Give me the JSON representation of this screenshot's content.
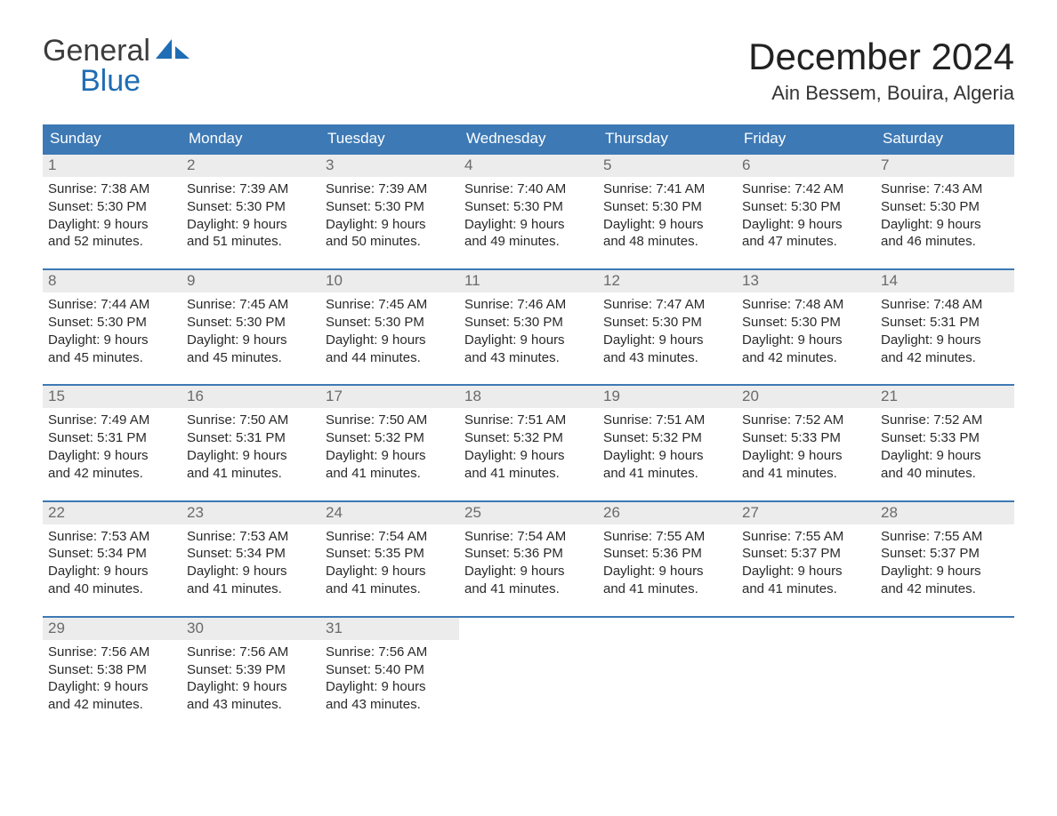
{
  "logo": {
    "word1": "General",
    "word2": "Blue",
    "sail_color": "#1f6db4",
    "text_color": "#3c3c3c"
  },
  "header": {
    "month": "December 2024",
    "location": "Ain Bessem, Bouira, Algeria"
  },
  "colors": {
    "header_bg": "#3d79b5",
    "header_text": "#ffffff",
    "week_border": "#3d79b5",
    "daynum_bg": "#ececec",
    "daynum_text": "#6a6a6a",
    "body_text": "#2a2a2a",
    "page_bg": "#ffffff"
  },
  "weekdays": [
    "Sunday",
    "Monday",
    "Tuesday",
    "Wednesday",
    "Thursday",
    "Friday",
    "Saturday"
  ],
  "days": [
    {
      "n": "1",
      "sr": "7:38 AM",
      "ss": "5:30 PM",
      "dl1": "Daylight: 9 hours",
      "dl2": "and 52 minutes."
    },
    {
      "n": "2",
      "sr": "7:39 AM",
      "ss": "5:30 PM",
      "dl1": "Daylight: 9 hours",
      "dl2": "and 51 minutes."
    },
    {
      "n": "3",
      "sr": "7:39 AM",
      "ss": "5:30 PM",
      "dl1": "Daylight: 9 hours",
      "dl2": "and 50 minutes."
    },
    {
      "n": "4",
      "sr": "7:40 AM",
      "ss": "5:30 PM",
      "dl1": "Daylight: 9 hours",
      "dl2": "and 49 minutes."
    },
    {
      "n": "5",
      "sr": "7:41 AM",
      "ss": "5:30 PM",
      "dl1": "Daylight: 9 hours",
      "dl2": "and 48 minutes."
    },
    {
      "n": "6",
      "sr": "7:42 AM",
      "ss": "5:30 PM",
      "dl1": "Daylight: 9 hours",
      "dl2": "and 47 minutes."
    },
    {
      "n": "7",
      "sr": "7:43 AM",
      "ss": "5:30 PM",
      "dl1": "Daylight: 9 hours",
      "dl2": "and 46 minutes."
    },
    {
      "n": "8",
      "sr": "7:44 AM",
      "ss": "5:30 PM",
      "dl1": "Daylight: 9 hours",
      "dl2": "and 45 minutes."
    },
    {
      "n": "9",
      "sr": "7:45 AM",
      "ss": "5:30 PM",
      "dl1": "Daylight: 9 hours",
      "dl2": "and 45 minutes."
    },
    {
      "n": "10",
      "sr": "7:45 AM",
      "ss": "5:30 PM",
      "dl1": "Daylight: 9 hours",
      "dl2": "and 44 minutes."
    },
    {
      "n": "11",
      "sr": "7:46 AM",
      "ss": "5:30 PM",
      "dl1": "Daylight: 9 hours",
      "dl2": "and 43 minutes."
    },
    {
      "n": "12",
      "sr": "7:47 AM",
      "ss": "5:30 PM",
      "dl1": "Daylight: 9 hours",
      "dl2": "and 43 minutes."
    },
    {
      "n": "13",
      "sr": "7:48 AM",
      "ss": "5:30 PM",
      "dl1": "Daylight: 9 hours",
      "dl2": "and 42 minutes."
    },
    {
      "n": "14",
      "sr": "7:48 AM",
      "ss": "5:31 PM",
      "dl1": "Daylight: 9 hours",
      "dl2": "and 42 minutes."
    },
    {
      "n": "15",
      "sr": "7:49 AM",
      "ss": "5:31 PM",
      "dl1": "Daylight: 9 hours",
      "dl2": "and 42 minutes."
    },
    {
      "n": "16",
      "sr": "7:50 AM",
      "ss": "5:31 PM",
      "dl1": "Daylight: 9 hours",
      "dl2": "and 41 minutes."
    },
    {
      "n": "17",
      "sr": "7:50 AM",
      "ss": "5:32 PM",
      "dl1": "Daylight: 9 hours",
      "dl2": "and 41 minutes."
    },
    {
      "n": "18",
      "sr": "7:51 AM",
      "ss": "5:32 PM",
      "dl1": "Daylight: 9 hours",
      "dl2": "and 41 minutes."
    },
    {
      "n": "19",
      "sr": "7:51 AM",
      "ss": "5:32 PM",
      "dl1": "Daylight: 9 hours",
      "dl2": "and 41 minutes."
    },
    {
      "n": "20",
      "sr": "7:52 AM",
      "ss": "5:33 PM",
      "dl1": "Daylight: 9 hours",
      "dl2": "and 41 minutes."
    },
    {
      "n": "21",
      "sr": "7:52 AM",
      "ss": "5:33 PM",
      "dl1": "Daylight: 9 hours",
      "dl2": "and 40 minutes."
    },
    {
      "n": "22",
      "sr": "7:53 AM",
      "ss": "5:34 PM",
      "dl1": "Daylight: 9 hours",
      "dl2": "and 40 minutes."
    },
    {
      "n": "23",
      "sr": "7:53 AM",
      "ss": "5:34 PM",
      "dl1": "Daylight: 9 hours",
      "dl2": "and 41 minutes."
    },
    {
      "n": "24",
      "sr": "7:54 AM",
      "ss": "5:35 PM",
      "dl1": "Daylight: 9 hours",
      "dl2": "and 41 minutes."
    },
    {
      "n": "25",
      "sr": "7:54 AM",
      "ss": "5:36 PM",
      "dl1": "Daylight: 9 hours",
      "dl2": "and 41 minutes."
    },
    {
      "n": "26",
      "sr": "7:55 AM",
      "ss": "5:36 PM",
      "dl1": "Daylight: 9 hours",
      "dl2": "and 41 minutes."
    },
    {
      "n": "27",
      "sr": "7:55 AM",
      "ss": "5:37 PM",
      "dl1": "Daylight: 9 hours",
      "dl2": "and 41 minutes."
    },
    {
      "n": "28",
      "sr": "7:55 AM",
      "ss": "5:37 PM",
      "dl1": "Daylight: 9 hours",
      "dl2": "and 42 minutes."
    },
    {
      "n": "29",
      "sr": "7:56 AM",
      "ss": "5:38 PM",
      "dl1": "Daylight: 9 hours",
      "dl2": "and 42 minutes."
    },
    {
      "n": "30",
      "sr": "7:56 AM",
      "ss": "5:39 PM",
      "dl1": "Daylight: 9 hours",
      "dl2": "and 43 minutes."
    },
    {
      "n": "31",
      "sr": "7:56 AM",
      "ss": "5:40 PM",
      "dl1": "Daylight: 9 hours",
      "dl2": "and 43 minutes."
    }
  ],
  "layout": {
    "start_offset": 0,
    "total_cells": 35,
    "labels": {
      "sunrise_prefix": "Sunrise: ",
      "sunset_prefix": "Sunset: "
    }
  }
}
